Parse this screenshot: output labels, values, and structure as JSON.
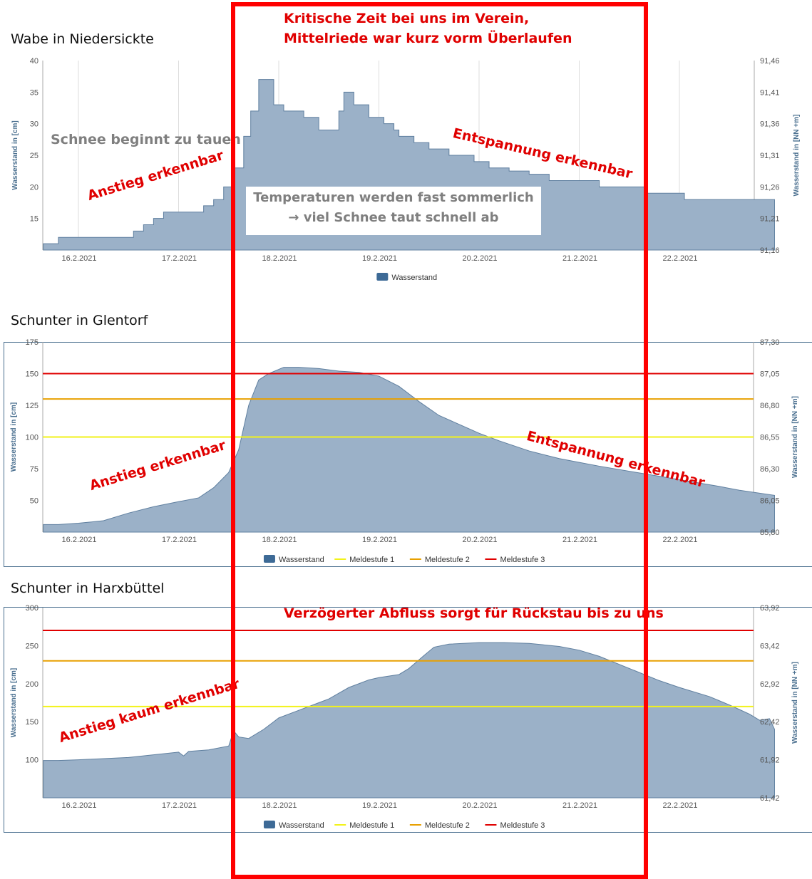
{
  "colors": {
    "area_fill": "#9bb1c8",
    "area_stroke": "#5f7f9f",
    "legend_swatch": "#3d6a96",
    "axis_text": "#555555",
    "axis_title": "#4a6f8f",
    "grid": "#dddddd",
    "meldestufe_1": "#f2f21a",
    "meldestufe_2": "#e8a000",
    "meldestufe_3": "#e00000",
    "annotation": "#e00000",
    "highlight_frame": "#ff0000"
  },
  "annotations": {
    "critical_line1": "Kritische Zeit bei uns im Verein,",
    "critical_line2": "Mittelriede war kurz vorm Überlaufen",
    "wabe_snow": "Schnee beginnt zu tauen",
    "wabe_rise": "Anstieg erkennbar",
    "wabe_relief": "Entspannung erkennbar",
    "temp_line1": "Temperaturen  werden fast sommerlich",
    "temp_line2": "→ viel Schnee taut schnell ab",
    "glentorf_rise": "Anstieg erkennbar",
    "glentorf_relief": "Entspannung erkennbar",
    "harx_delay": "Verzögerter Abfluss sorgt für Rückstau bis zu uns",
    "harx_rise": "Anstieg kaum erkennbar"
  },
  "chart_data": [
    {
      "type": "area",
      "title": "Wabe in Niedersickte",
      "ylabel": "Wasserstand in [cm]",
      "ylabel_right": "Wasserstand in [NN +m]",
      "x_ticks": [
        "16.2.2021",
        "17.2.2021",
        "18.2.2021",
        "19.2.2021",
        "20.2.2021",
        "21.2.2021",
        "22.2.2021"
      ],
      "y_ticks": [
        "40",
        "35",
        "30",
        "25",
        "20",
        "15"
      ],
      "y2_ticks": [
        "91,46",
        "91,41",
        "91,36",
        "91,31",
        "91,26",
        "91,21",
        "91,16"
      ],
      "ylim": [
        10,
        40
      ],
      "y2lim": [
        91.16,
        91.46
      ],
      "grid": true,
      "legend": [
        "Wasserstand"
      ],
      "legend_position": "bottom",
      "x": [
        15.65,
        15.8,
        15.95,
        16.5,
        16.55,
        16.65,
        16.75,
        16.85,
        16.95,
        17.25,
        17.35,
        17.45,
        17.55,
        17.65,
        17.72,
        17.8,
        17.95,
        18.05,
        18.1,
        18.25,
        18.4,
        18.6,
        18.65,
        18.75,
        18.9,
        19.05,
        19.15,
        19.2,
        19.35,
        19.5,
        19.7,
        19.95,
        20.1,
        20.3,
        20.5,
        20.7,
        20.9,
        21.2,
        21.65,
        22.05,
        22.95
      ],
      "series": [
        {
          "name": "Wasserstand",
          "values": [
            11,
            12,
            12,
            12,
            13,
            14,
            15,
            16,
            16,
            17,
            18,
            20,
            23,
            28,
            32,
            37,
            33,
            32,
            32,
            31,
            29,
            32,
            35,
            33,
            31,
            30,
            29,
            28,
            27,
            26,
            25,
            24,
            23,
            22.5,
            22,
            21,
            21,
            20,
            19,
            18,
            17
          ]
        }
      ]
    },
    {
      "type": "area",
      "title": "Schunter in Glentorf",
      "ylabel": "Wasserstand in [cm]",
      "ylabel_right": "Wasserstand in [NN +m]",
      "x_ticks": [
        "16.2.2021",
        "17.2.2021",
        "18.2.2021",
        "19.2.2021",
        "20.2.2021",
        "21.2.2021",
        "22.2.2021"
      ],
      "y_ticks": [
        "175",
        "150",
        "125",
        "100",
        "75",
        "50"
      ],
      "y2_ticks": [
        "87,30",
        "87,05",
        "86,80",
        "86,55",
        "86,30",
        "86,05",
        "85,80"
      ],
      "ylim": [
        25,
        175
      ],
      "y2lim": [
        85.8,
        87.3
      ],
      "grid": false,
      "thresholds": [
        {
          "name": "Meldestufe 1",
          "value": 100
        },
        {
          "name": "Meldestufe 2",
          "value": 130
        },
        {
          "name": "Meldestufe 3",
          "value": 150
        }
      ],
      "legend": [
        "Wasserstand",
        "Meldestufe 1",
        "Meldestufe 2",
        "Meldestufe 3"
      ],
      "legend_position": "bottom",
      "x": [
        15.65,
        15.8,
        16.0,
        16.25,
        16.5,
        16.75,
        17.0,
        17.2,
        17.35,
        17.5,
        17.6,
        17.7,
        17.8,
        17.9,
        18.05,
        18.2,
        18.4,
        18.6,
        18.8,
        19.0,
        19.2,
        19.4,
        19.6,
        19.8,
        20.0,
        20.2,
        20.5,
        20.8,
        21.0,
        21.2,
        21.5,
        21.8,
        22.1,
        22.4,
        22.6,
        22.95
      ],
      "series": [
        {
          "name": "Wasserstand",
          "values": [
            31,
            31,
            32,
            34,
            40,
            45,
            49,
            52,
            60,
            72,
            90,
            125,
            145,
            150,
            155,
            155,
            154,
            152,
            151,
            148,
            140,
            128,
            117,
            110,
            103,
            97,
            89,
            83,
            80,
            77,
            73,
            69,
            65,
            61,
            58,
            54
          ]
        }
      ]
    },
    {
      "type": "area",
      "title": "Schunter in Harxbüttel",
      "ylabel": "Wasserstand in [cm]",
      "ylabel_right": "Wasserstand in [NN +m]",
      "x_ticks": [
        "16.2.2021",
        "17.2.2021",
        "18.2.2021",
        "19.2.2021",
        "20.2.2021",
        "21.2.2021",
        "22.2.2021"
      ],
      "y_ticks": [
        "300",
        "250",
        "200",
        "150",
        "100"
      ],
      "y2_ticks": [
        "63,92",
        "63,42",
        "62,92",
        "62,42",
        "61,92",
        "61,42"
      ],
      "ylim": [
        50,
        300
      ],
      "y2lim": [
        61.42,
        63.92
      ],
      "grid": false,
      "thresholds": [
        {
          "name": "Meldestufe 1",
          "value": 170
        },
        {
          "name": "Meldestufe 2",
          "value": 230
        },
        {
          "name": "Meldestufe 3",
          "value": 270
        }
      ],
      "legend": [
        "Wasserstand",
        "Meldestufe 1",
        "Meldestufe 2",
        "Meldestufe 3"
      ],
      "legend_position": "bottom",
      "x": [
        15.65,
        15.8,
        16.0,
        16.5,
        17.0,
        17.05,
        17.1,
        17.3,
        17.5,
        17.55,
        17.6,
        17.7,
        17.85,
        18.0,
        18.2,
        18.4,
        18.5,
        18.7,
        18.9,
        19.0,
        19.2,
        19.3,
        19.45,
        19.55,
        19.7,
        20.0,
        20.25,
        20.5,
        20.8,
        21.0,
        21.2,
        21.5,
        21.8,
        22.0,
        22.3,
        22.5,
        22.6,
        22.7,
        22.8,
        22.9,
        22.95
      ],
      "series": [
        {
          "name": "Wasserstand",
          "values": [
            99,
            99,
            100,
            103,
            110,
            105,
            111,
            113,
            118,
            138,
            130,
            128,
            140,
            155,
            165,
            175,
            180,
            195,
            205,
            208,
            212,
            220,
            237,
            248,
            252,
            254,
            254,
            253,
            249,
            244,
            236,
            220,
            204,
            195,
            183,
            172,
            166,
            160,
            152,
            154,
            140
          ]
        }
      ]
    }
  ]
}
